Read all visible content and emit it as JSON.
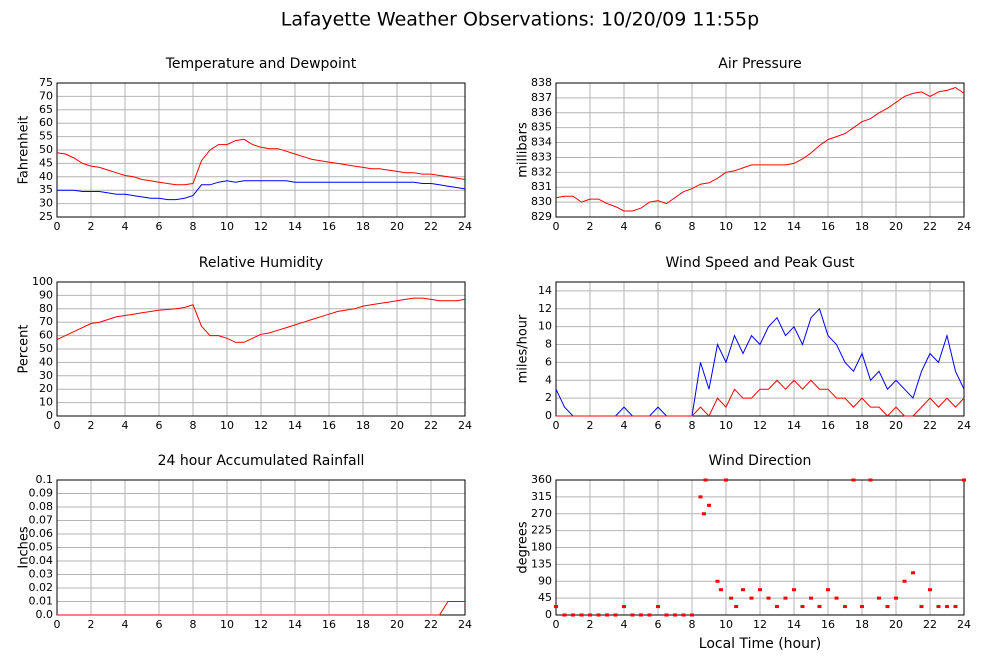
{
  "title": "Lafayette Weather Observations: 10/20/09 11:55p",
  "chart_data": [
    {
      "type": "line",
      "title": "Temperature and Dewpoint",
      "ylabel": "Fahrenheit",
      "x": [
        0,
        0.5,
        1,
        1.5,
        2,
        2.5,
        3,
        3.5,
        4,
        4.5,
        5,
        5.5,
        6,
        6.5,
        7,
        7.5,
        8,
        8.5,
        9,
        9.5,
        10,
        10.5,
        11,
        11.5,
        12,
        12.5,
        13,
        13.5,
        14,
        14.5,
        15,
        15.5,
        16,
        16.5,
        17,
        17.5,
        18,
        18.5,
        19,
        19.5,
        20,
        20.5,
        21,
        21.5,
        22,
        22.5,
        23,
        23.5,
        24
      ],
      "series": [
        {
          "color": "#ff0000",
          "values": [
            49,
            48.5,
            47,
            45,
            44,
            43.5,
            42.5,
            41.5,
            40.5,
            40,
            39,
            38.5,
            38,
            37.5,
            37,
            37,
            37.5,
            46,
            50,
            52,
            52,
            53.5,
            54,
            52,
            51,
            50.5,
            50.5,
            49.5,
            48.5,
            47.5,
            46.5,
            46,
            45.5,
            45,
            44.5,
            44,
            43.5,
            43,
            43,
            42.5,
            42,
            41.5,
            41.5,
            41,
            41,
            40.5,
            40,
            39.5,
            39
          ]
        },
        {
          "color": "#0000ff",
          "values": [
            35,
            35,
            35,
            34.5,
            34.5,
            34.5,
            34,
            33.5,
            33.5,
            33,
            32.5,
            32,
            32,
            31.5,
            31.5,
            32,
            33,
            37,
            37,
            38,
            38.5,
            38,
            38.5,
            38.5,
            38.5,
            38.5,
            38.5,
            38.5,
            38,
            38,
            38,
            38,
            38,
            38,
            38,
            38,
            38,
            38,
            38,
            38,
            38,
            38,
            38,
            37.5,
            37.5,
            37,
            36.5,
            36,
            35.5
          ]
        }
      ],
      "xlim": [
        0,
        24
      ],
      "xticks": [
        0,
        2,
        4,
        6,
        8,
        10,
        12,
        14,
        16,
        18,
        20,
        22,
        24
      ],
      "ylim": [
        25,
        75
      ],
      "yticks": [
        25,
        30,
        35,
        40,
        45,
        50,
        55,
        60,
        65,
        70,
        75
      ],
      "grid": true
    },
    {
      "type": "line",
      "title": "Air Pressure",
      "ylabel": "millibars",
      "x": [
        0,
        0.5,
        1,
        1.5,
        2,
        2.5,
        3,
        3.5,
        4,
        4.5,
        5,
        5.5,
        6,
        6.5,
        7,
        7.5,
        8,
        8.5,
        9,
        9.5,
        10,
        10.5,
        11,
        11.5,
        12,
        12.5,
        13,
        13.5,
        14,
        14.5,
        15,
        15.5,
        16,
        16.5,
        17,
        17.5,
        18,
        18.5,
        19,
        19.5,
        20,
        20.5,
        21,
        21.5,
        22,
        22.5,
        23,
        23.5,
        24
      ],
      "series": [
        {
          "color": "#ff0000",
          "values": [
            830.3,
            830.4,
            830.4,
            830,
            830.2,
            830.2,
            829.9,
            829.7,
            829.4,
            829.4,
            829.6,
            830,
            830.1,
            829.9,
            830.3,
            830.7,
            830.9,
            831.2,
            831.3,
            831.6,
            832,
            832.1,
            832.3,
            832.5,
            832.5,
            832.5,
            832.5,
            832.5,
            832.6,
            832.9,
            833.3,
            833.8,
            834.2,
            834.4,
            834.6,
            835,
            835.4,
            835.6,
            836,
            836.3,
            836.7,
            837.1,
            837.3,
            837.4,
            837.1,
            837.4,
            837.5,
            837.7,
            837.3
          ]
        }
      ],
      "xlim": [
        0,
        24
      ],
      "xticks": [
        0,
        2,
        4,
        6,
        8,
        10,
        12,
        14,
        16,
        18,
        20,
        22,
        24
      ],
      "ylim": [
        829,
        838
      ],
      "yticks": [
        829,
        830,
        831,
        832,
        833,
        834,
        835,
        836,
        837,
        838
      ],
      "grid": true
    },
    {
      "type": "line",
      "title": "Relative Humidity",
      "ylabel": "Percent",
      "x": [
        0,
        0.5,
        1,
        1.5,
        2,
        2.5,
        3,
        3.5,
        4,
        4.5,
        5,
        5.5,
        6,
        6.5,
        7,
        7.5,
        8,
        8.5,
        9,
        9.5,
        10,
        10.5,
        11,
        11.5,
        12,
        12.5,
        13,
        13.5,
        14,
        14.5,
        15,
        15.5,
        16,
        16.5,
        17,
        17.5,
        18,
        18.5,
        19,
        19.5,
        20,
        20.5,
        21,
        21.5,
        22,
        22.5,
        23,
        23.5,
        24
      ],
      "series": [
        {
          "color": "#ff0000",
          "values": [
            57,
            60,
            63,
            66,
            69,
            70,
            72,
            74,
            75,
            76,
            77,
            78,
            79,
            79.5,
            80,
            81,
            83,
            67,
            60,
            60,
            58,
            55,
            55,
            58,
            61,
            62,
            64,
            66,
            68,
            70,
            72,
            74,
            76,
            78,
            79,
            80,
            82,
            83,
            84,
            85,
            86,
            87,
            88,
            88,
            87,
            86,
            86,
            86,
            87
          ]
        }
      ],
      "xlim": [
        0,
        24
      ],
      "xticks": [
        0,
        2,
        4,
        6,
        8,
        10,
        12,
        14,
        16,
        18,
        20,
        22,
        24
      ],
      "ylim": [
        0,
        100
      ],
      "yticks": [
        0,
        10,
        20,
        30,
        40,
        50,
        60,
        70,
        80,
        90,
        100
      ],
      "grid": true
    },
    {
      "type": "line",
      "title": "Wind Speed and Peak Gust",
      "ylabel": "miles/hour",
      "x": [
        0,
        0.5,
        1,
        1.5,
        2,
        2.5,
        3,
        3.5,
        4,
        4.5,
        5,
        5.5,
        6,
        6.5,
        7,
        7.5,
        8,
        8.5,
        9,
        9.5,
        10,
        10.5,
        11,
        11.5,
        12,
        12.5,
        13,
        13.5,
        14,
        14.5,
        15,
        15.5,
        16,
        16.5,
        17,
        17.5,
        18,
        18.5,
        19,
        19.5,
        20,
        20.5,
        21,
        21.5,
        22,
        22.5,
        23,
        23.5,
        24
      ],
      "series": [
        {
          "color": "#0000ff",
          "values": [
            3,
            1,
            0,
            0,
            0,
            0,
            0,
            0,
            1,
            0,
            0,
            0,
            1,
            0,
            0,
            0,
            0,
            6,
            3,
            8,
            6,
            9,
            7,
            9,
            8,
            10,
            11,
            9,
            10,
            8,
            11,
            12,
            9,
            8,
            6,
            5,
            7,
            4,
            5,
            3,
            4,
            3,
            2,
            5,
            7,
            6,
            9,
            5,
            3
          ]
        },
        {
          "color": "#ff0000",
          "values": [
            0,
            0,
            0,
            0,
            0,
            0,
            0,
            0,
            0,
            0,
            0,
            0,
            0,
            0,
            0,
            0,
            0,
            1,
            0,
            2,
            1,
            3,
            2,
            2,
            3,
            3,
            4,
            3,
            4,
            3,
            4,
            3,
            3,
            2,
            2,
            1,
            2,
            1,
            1,
            0,
            1,
            0,
            0,
            1,
            2,
            1,
            2,
            1,
            2
          ]
        }
      ],
      "xlim": [
        0,
        24
      ],
      "xticks": [
        0,
        2,
        4,
        6,
        8,
        10,
        12,
        14,
        16,
        18,
        20,
        22,
        24
      ],
      "ylim": [
        0,
        15
      ],
      "yticks": [
        0,
        2,
        4,
        6,
        8,
        10,
        12,
        14
      ],
      "grid": true
    },
    {
      "type": "line",
      "title": "24 hour Accumulated Rainfall",
      "ylabel": "Inches",
      "x": [
        0,
        0.5,
        1,
        1.5,
        2,
        2.5,
        3,
        3.5,
        4,
        4.5,
        5,
        5.5,
        6,
        6.5,
        7,
        7.5,
        8,
        8.5,
        9,
        9.5,
        10,
        10.5,
        11,
        11.5,
        12,
        12.5,
        13,
        13.5,
        14,
        14.5,
        15,
        15.5,
        16,
        16.5,
        17,
        17.5,
        18,
        18.5,
        19,
        19.5,
        20,
        20.5,
        21,
        21.5,
        22,
        22.5,
        23,
        23.5,
        24
      ],
      "series": [
        {
          "color": "#ff0000",
          "values": [
            0,
            0,
            0,
            0,
            0,
            0,
            0,
            0,
            0,
            0,
            0,
            0,
            0,
            0,
            0,
            0,
            0,
            0,
            0,
            0,
            0,
            0,
            0,
            0,
            0,
            0,
            0,
            0,
            0,
            0,
            0,
            0,
            0,
            0,
            0,
            0,
            0,
            0,
            0,
            0,
            0,
            0,
            0,
            0,
            0,
            0,
            0.01,
            0.01,
            0.01
          ]
        }
      ],
      "xlim": [
        0,
        24
      ],
      "xticks": [
        0,
        2,
        4,
        6,
        8,
        10,
        12,
        14,
        16,
        18,
        20,
        22,
        24
      ],
      "ylim": [
        0,
        0.1
      ],
      "yticks": [
        {
          "value": 0,
          "label": "0.0"
        },
        0.01,
        0.02,
        0.03,
        0.04,
        0.05,
        0.06,
        0.07,
        0.08,
        0.09,
        0.1
      ],
      "grid": true
    },
    {
      "type": "scatter",
      "title": "Wind Direction",
      "ylabel": "degrees",
      "xlabel": "Local Time (hour)",
      "x": [
        0,
        0.5,
        1,
        1.5,
        2,
        2.5,
        3,
        3.5,
        4,
        4.5,
        5,
        5.5,
        6,
        6.5,
        7,
        7.5,
        8,
        8.5,
        8.7,
        8.8,
        9,
        9.5,
        9.7,
        10,
        10.3,
        10.6,
        11,
        11.5,
        12,
        12.5,
        13,
        13.5,
        14,
        14.5,
        15,
        15.5,
        16,
        16.5,
        17,
        17.5,
        18,
        18.5,
        19,
        19.5,
        20,
        20.5,
        21,
        21.5,
        22,
        22.5,
        23,
        23.5,
        24
      ],
      "series": [
        {
          "color": "#ff0000",
          "values": [
            22.5,
            0,
            0,
            0,
            0,
            0,
            0,
            0,
            22.5,
            0,
            0,
            0,
            22.5,
            0,
            0,
            0,
            0,
            315,
            270,
            360,
            292.5,
            90,
            67.5,
            360,
            45,
            22.5,
            67.5,
            45,
            67.5,
            45,
            22.5,
            45,
            67.5,
            22.5,
            45,
            22.5,
            67.5,
            45,
            22.5,
            360,
            22.5,
            360,
            45,
            22.5,
            45,
            90,
            112.5,
            22.5,
            67.5,
            22.5,
            22.5,
            22.5,
            360
          ]
        }
      ],
      "xlim": [
        0,
        24
      ],
      "xticks": [
        0,
        2,
        4,
        6,
        8,
        10,
        12,
        14,
        16,
        18,
        20,
        22,
        24
      ],
      "ylim": [
        0,
        360
      ],
      "yticks": [
        0,
        45,
        90,
        135,
        180,
        225,
        270,
        315,
        360
      ],
      "grid": true
    }
  ]
}
